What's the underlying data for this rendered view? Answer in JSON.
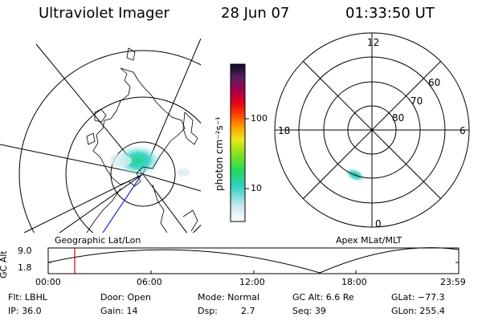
{
  "header": {
    "instrument": "Ultraviolet Imager",
    "date": "28 Jun 07",
    "time": "01:33:50 UT"
  },
  "left_map": {
    "label": "Geographic Lat/Lon"
  },
  "color_bar": {
    "unit_label": "photon cm⁻²s⁻¹",
    "ticks": [
      "100",
      "10"
    ],
    "scale": "log"
  },
  "right_map": {
    "label": "Apex MLat/MLT",
    "mlt_labels": {
      "top": "12",
      "left": "18",
      "right": "6",
      "bottom": "0"
    },
    "lat_labels": [
      "60",
      "70",
      "80"
    ]
  },
  "timeline": {
    "y_axis_label": "GC Alt",
    "y_ticks": [
      "9.0",
      "1.8"
    ],
    "x_ticks": [
      "00:00",
      "06:00",
      "12:00",
      "18:00",
      "23:59"
    ],
    "current_marker_time": "01:33:50"
  },
  "info": {
    "row1": {
      "filter": "Flt: LBHL",
      "door": "Door: Open",
      "mode": "Mode: Normal",
      "gc_alt": "GC Alt: 6.6 Re",
      "glat": "GLat: −77.3"
    },
    "row2": {
      "ip": "IP: 36.0",
      "gain": "Gain: 14",
      "dsp_label": "Dsp:",
      "dsp_value": "2.7",
      "seq": "Seq: 39",
      "glon": "GLon: 255.4"
    }
  },
  "colors": {
    "foreground": "#000000",
    "background": "#ffffff",
    "marker": "#cc0000",
    "track": "#1a2cd6"
  }
}
